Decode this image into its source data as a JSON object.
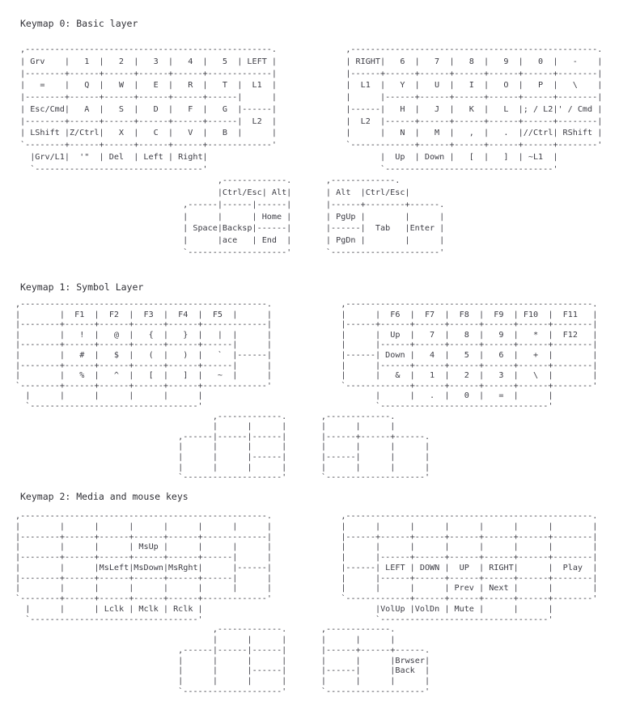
{
  "page": {
    "background": "#ffffff",
    "text_color": "#3c3c44",
    "title_color": "#303036"
  },
  "sections": [
    {
      "title": "Keymap 0: Basic layer",
      "ascii": [
        ",--------------------------------------------------.              ,--------------------------------------------------.",
        "| Grv    |   1  |   2  |   3  |   4  |   5  | LEFT |              | RIGHT|   6  |   7  |   8  |   9  |   0  |   -    |",
        "|--------+------+------+------+------+-------------|              |------+------+------+------+------+------+--------|",
        "|   =    |   Q  |   W  |   E  |   R  |   T  |  L1  |              |  L1  |   Y  |   U  |   I  |   O  |   P  |   \\    |",
        "|--------+------+------+------+------+------|      |              |      |------+------+------+------+------+--------|",
        "| Esc/Cmd|   A  |   S  |   D  |   F  |   G  |------|              |------|   H  |   J  |   K  |   L  |; / L2|' / Cmd |",
        "|--------+------+------+------+------+------|  L2  |              |  L2  |------+------+------+------+------+--------|",
        "| LShift |Z/Ctrl|   X  |   C  |   V  |   B  |      |              |      |   N  |   M  |   ,  |   .  |//Ctrl| RShift |",
        "`--------+------+------+------+------+-------------'              `-------------+------+------+------+------+--------'",
        "  |Grv/L1|  '\"  | Del  | Left | Right|                                   |  Up  | Down |   [  |   ]  | ~L1  |",
        "  `----------------------------------'                                   `----------------------------------'",
        "                                        ,-------------.       ,-------------.",
        "                                        |Ctrl/Esc| Alt|       | Alt  |Ctrl/Esc|",
        "                                 ,------|------|------|       |------+--------+------.",
        "                                 |      |      | Home |       | PgUp |        |      |",
        "                                 | Space|Backsp|------|       |------|  Tab   |Enter |",
        "                                 |      |ace   | End  |       | PgDn |        |      |",
        "                                 `--------------------'       `----------------------'"
      ]
    },
    {
      "title": "Keymap 1: Symbol Layer",
      "ascii": [
        ",--------------------------------------------------.              ,--------------------------------------------------.",
        "|        |  F1  |  F2  |  F3  |  F4  |  F5  |      |              |      |  F6  |  F7  |  F8  |  F9  | F10  |  F11   |",
        "|--------+------+------+------+------+-------------|              |------+------+------+------+------+------+--------|",
        "|        |   !  |   @  |   {  |   }  |   |  |      |              |      |  Up  |   7  |   8  |   9  |   *  |  F12   |",
        "|--------+------+------+------+------+------|      |              |      |------+------+------+------+------+--------|",
        "|        |   #  |   $  |   (  |   )  |   `  |------|              |------| Down |   4  |   5  |   6  |   +  |        |",
        "|--------+------+------+------+------+------|      |              |      |------+------+------+------+------+--------|",
        "|        |   %  |   ^  |   [  |   ]  |   ~  |      |              |      |   &  |   1  |   2  |   3  |   \\  |        |",
        "`--------+------+------+------+------+-------------'              `-------------+------+------+------+------+--------'",
        "  |      |      |      |      |      |                                   |      |   .  |   0  |   =  |      |",
        "  `----------------------------------'                                   `----------------------------------'",
        "                                        ,-------------.       ,-------------.",
        "                                        |      |      |       |      |      |",
        "                                 ,------|------|------|       |------+------+------.",
        "                                 |      |      |      |       |      |      |      |",
        "                                 |      |      |------|       |------|      |      |",
        "                                 |      |      |      |       |      |      |      |",
        "                                 `--------------------'       `--------------------'"
      ]
    },
    {
      "title": "Keymap 2: Media and mouse keys",
      "ascii": [
        ",--------------------------------------------------.              ,--------------------------------------------------.",
        "|        |      |      |      |      |      |      |              |      |      |      |      |      |      |        |",
        "|--------+------+------+------+------+-------------|              |------+------+------+------+------+------+--------|",
        "|        |      |      | MsUp |      |      |      |              |      |      |      |      |      |      |        |",
        "|--------+------+------+------+------+------|      |              |      |------+------+------+------+------+--------|",
        "|        |      |MsLeft|MsDown|MsRght|      |------|              |------| LEFT | DOWN |  UP  | RIGHT|      |  Play  |",
        "|--------+------+------+------+------+------|      |              |      |------+------+------+------+------+--------|",
        "|        |      |      |      |      |      |      |              |      |      |      | Prev | Next |      |        |",
        "`--------+------+------+------+------+-------------'              `-------------+------+------+------+------+--------'",
        "  |      |      | Lclk | Mclk | Rclk |                                   |VolUp |VolDn | Mute |      |      |",
        "  `----------------------------------'                                   `----------------------------------'",
        "                                        ,-------------.       ,-------------.",
        "                                        |      |      |       |      |      |",
        "                                 ,------|------|------|       |------+------+------.",
        "                                 |      |      |      |       |      |      |Brwser|",
        "                                 |      |      |------|       |------|      |Back  |",
        "                                 |      |      |      |       |      |      |      |",
        "                                 `--------------------'       `--------------------'"
      ]
    }
  ]
}
